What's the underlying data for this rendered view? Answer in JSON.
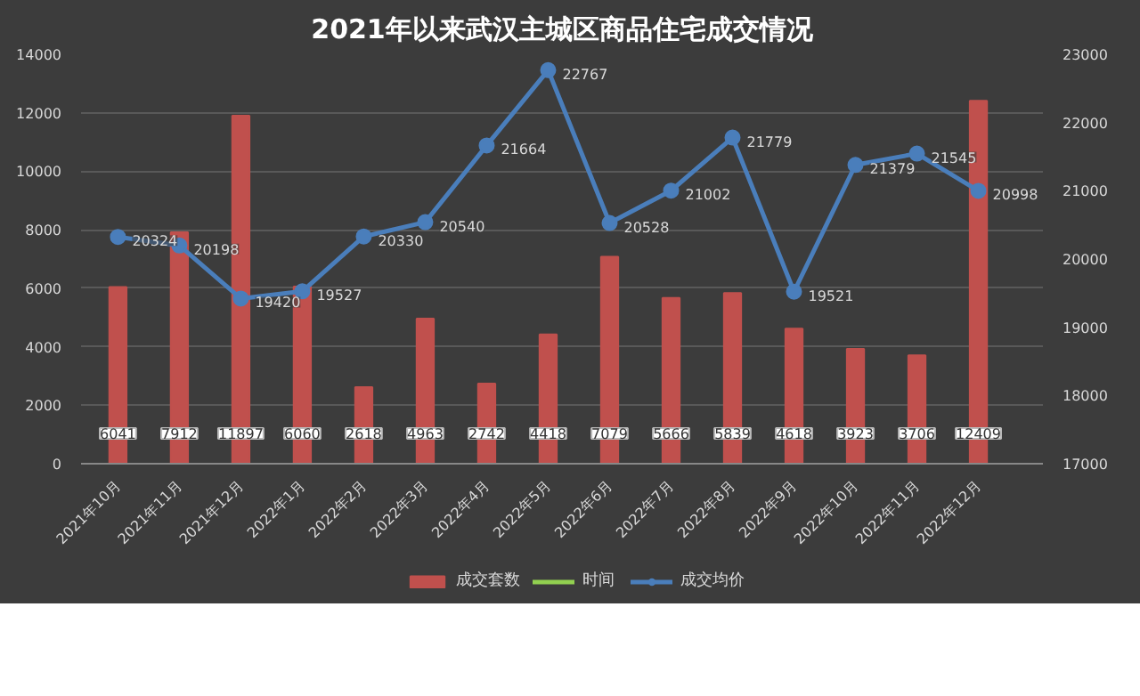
{
  "chart_data": {
    "type": "bar",
    "title": "2021年以来武汉主城区商品住宅成交情况",
    "categories": [
      "2021年10月",
      "2021年11月",
      "2021年12月",
      "2022年1月",
      "2022年2月",
      "2022年3月",
      "2022年4月",
      "2022年5月",
      "2022年6月",
      "2022年7月",
      "2022年8月",
      "2022年9月",
      "2022年10月",
      "2022年11月",
      "2022年12月"
    ],
    "series": [
      {
        "name": "成交套数",
        "color": "#c0504d",
        "values": [
          6041,
          7912,
          11897,
          6060,
          2618,
          4963,
          2742,
          4418,
          7079,
          5666,
          5839,
          4618,
          3923,
          3706,
          12409
        ]
      },
      {
        "name": "时间",
        "color": "#92d050",
        "type": "line",
        "values": [
          null,
          null,
          null,
          null,
          null,
          null,
          null,
          null,
          null,
          null,
          null,
          null,
          null,
          null,
          null
        ]
      },
      {
        "name": "成交均价",
        "color": "#4a7ebb",
        "type": "line",
        "axis": "y2",
        "marker": "circle",
        "values": [
          20324,
          20198,
          19420,
          19527,
          20330,
          20540,
          21664,
          22767,
          20528,
          21002,
          21779,
          19521,
          21379,
          21545,
          20998
        ]
      }
    ],
    "ylim": [
      0,
      14000
    ],
    "yticks": [
      0,
      2000,
      4000,
      6000,
      8000,
      10000,
      12000,
      14000
    ],
    "y2lim": [
      17000,
      23000
    ],
    "y2ticks": [
      17000,
      18000,
      19000,
      20000,
      21000,
      22000,
      23000
    ],
    "grid": "y",
    "legend": "bottom",
    "data_labels": true
  }
}
